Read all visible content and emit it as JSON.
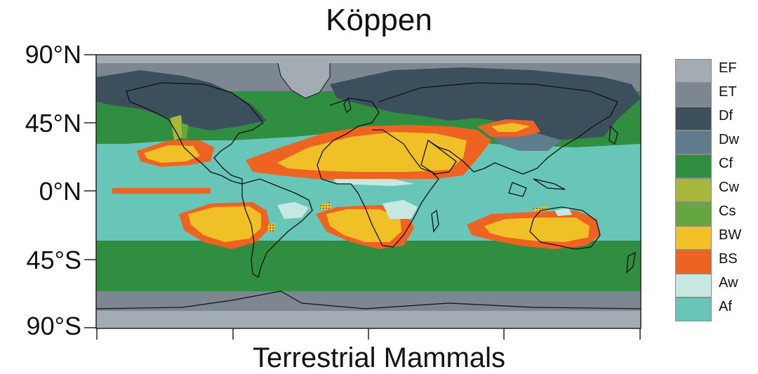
{
  "title": "Köppen",
  "lat_labels": [
    "90°N",
    "45°N",
    "0°N",
    "45°S",
    "90°S"
  ],
  "xlabel": "Terrestrial Mammals",
  "legend": [
    {
      "code": "EF",
      "color": "#a3abb3"
    },
    {
      "code": "ET",
      "color": "#7d8792"
    },
    {
      "code": "Df",
      "color": "#3c4f5c"
    },
    {
      "code": "Dw",
      "color": "#5f7d8c"
    },
    {
      "code": "Cf",
      "color": "#2f8e40"
    },
    {
      "code": "Cw",
      "color": "#a7b83c"
    },
    {
      "code": "Cs",
      "color": "#66a640"
    },
    {
      "code": "BW",
      "color": "#f0c126"
    },
    {
      "code": "BS",
      "color": "#ef6322"
    },
    {
      "code": "Aw",
      "color": "#c7e8e0"
    },
    {
      "code": "Af",
      "color": "#68c6b8"
    }
  ]
}
